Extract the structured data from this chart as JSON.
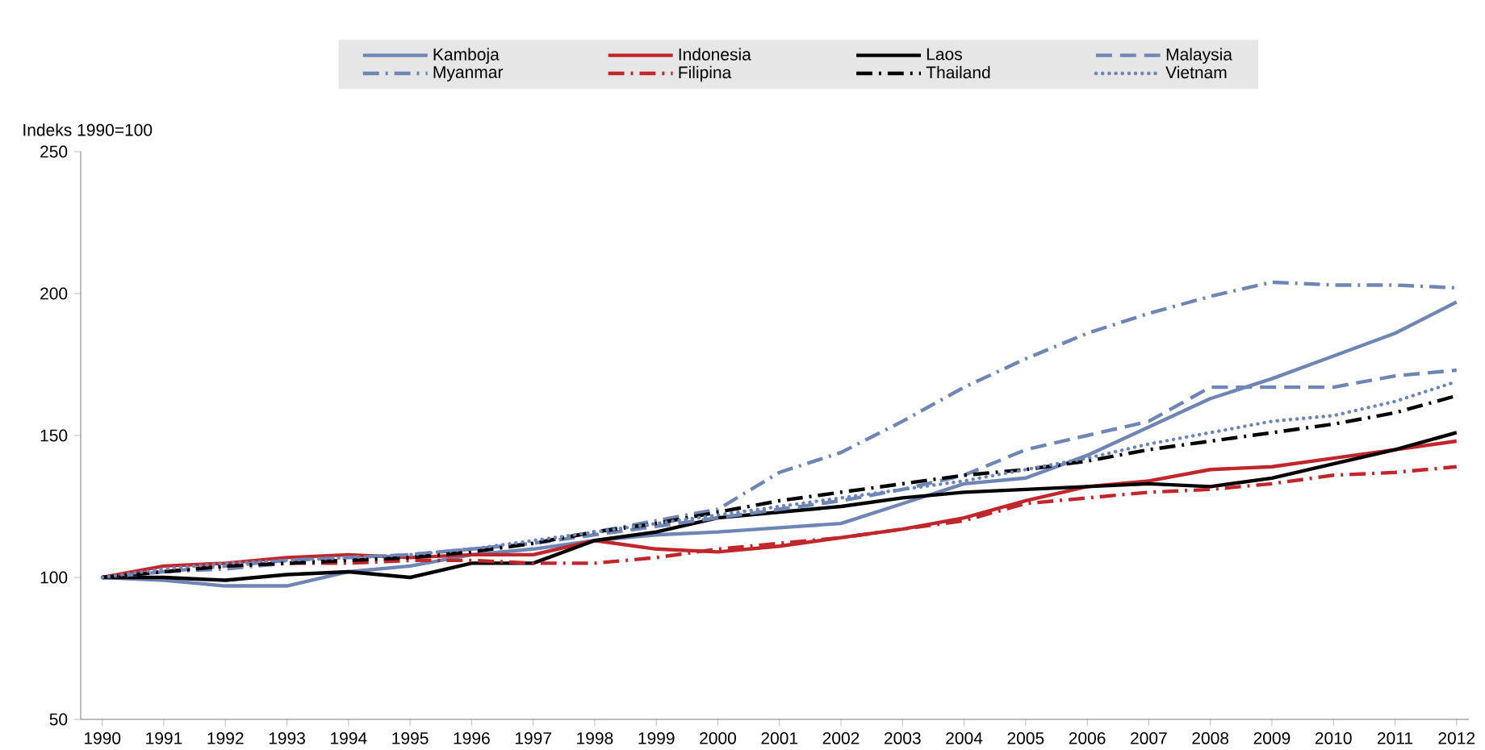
{
  "chart_data": {
    "type": "line",
    "ylabel": "Indeks 1990=100",
    "categories": [
      "1990",
      "1991",
      "1992",
      "1993",
      "1994",
      "1995",
      "1996",
      "1997",
      "1998",
      "1999",
      "2000",
      "2001",
      "2002",
      "2003",
      "2004",
      "2005",
      "2006",
      "2007",
      "2008",
      "2009",
      "2010",
      "2011",
      "2012"
    ],
    "ylim": [
      50,
      250
    ],
    "yticks": [
      50,
      100,
      150,
      200,
      250
    ],
    "legend": "top",
    "marker": "none",
    "series": [
      {
        "name": "Kamboja",
        "color": "#6f86b5",
        "line_style": "solid",
        "values": [
          100,
          99,
          97,
          97,
          102,
          104,
          108,
          110,
          113,
          115,
          116,
          117.5,
          119,
          126,
          133,
          135,
          143,
          153,
          163,
          170,
          178,
          186,
          197
        ]
      },
      {
        "name": "Indonesia",
        "color": "#c0272d",
        "line_style": "solid",
        "values": [
          100,
          104,
          105,
          107,
          108,
          107,
          108,
          108,
          113,
          110,
          109,
          111,
          114,
          117,
          121,
          127,
          132,
          134,
          138,
          139,
          142,
          145,
          148
        ]
      },
      {
        "name": "Laos",
        "color": "#000000",
        "line_style": "solid",
        "values": [
          100,
          100,
          99,
          101,
          102,
          100,
          105,
          105,
          113,
          116,
          121,
          123,
          125,
          128,
          130,
          131,
          132,
          133,
          132,
          135,
          140,
          145,
          151
        ]
      },
      {
        "name": "Malaysia",
        "color": "#6f86b5",
        "line_style": "dashed",
        "values": [
          100,
          102,
          104,
          106,
          107,
          108,
          110,
          112,
          115,
          118,
          121,
          124,
          127,
          131,
          136,
          145,
          150,
          155,
          167,
          167,
          167,
          171,
          173
        ]
      },
      {
        "name": "Myanmar",
        "color": "#6f86b5",
        "line_style": "dashdot",
        "values": [
          100,
          102,
          103,
          105,
          106,
          108,
          110,
          112,
          116,
          120,
          124,
          137,
          144,
          155,
          167,
          177,
          186,
          193,
          199,
          204,
          203,
          203,
          202
        ]
      },
      {
        "name": "Filipina",
        "color": "#c0272d",
        "line_style": "dashdot",
        "values": [
          100,
          102,
          104,
          105,
          105,
          106,
          106,
          105,
          105,
          107,
          110,
          112,
          114,
          117,
          120,
          126,
          128,
          130,
          131,
          133,
          136,
          137,
          139
        ]
      },
      {
        "name": "Thailand",
        "color": "#000000",
        "line_style": "dashdot",
        "values": [
          100,
          102,
          104,
          105,
          106,
          107,
          109,
          112,
          116,
          119,
          123,
          127,
          130,
          133,
          136,
          138,
          141,
          145,
          148,
          151,
          154,
          158,
          164
        ]
      },
      {
        "name": "Vietnam",
        "color": "#6f86b5",
        "line_style": "dotted",
        "values": [
          100,
          103,
          105,
          106,
          107,
          108,
          110,
          113,
          116,
          119,
          122,
          125,
          128,
          131,
          134,
          138,
          142,
          147,
          151,
          155,
          157,
          162,
          169
        ]
      }
    ]
  }
}
